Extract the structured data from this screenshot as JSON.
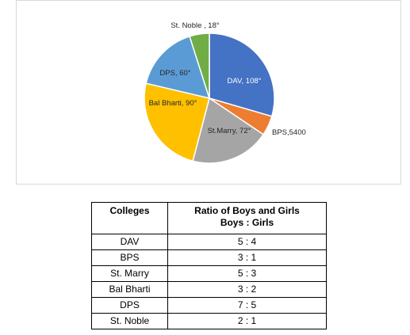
{
  "chart_data": {
    "type": "pie",
    "slices": [
      {
        "label": "DAV, 108°",
        "name": "DAV",
        "value": 108,
        "color": "#4472C4",
        "label_color": "#ffffff"
      },
      {
        "label": "BPS,5400",
        "name": "BPS",
        "value": 18,
        "color": "#ED7D31",
        "label_color": "#262626"
      },
      {
        "label": "St.Marry, 72°",
        "name": "St.Marry",
        "value": 72,
        "color": "#A5A5A5",
        "label_color": "#262626"
      },
      {
        "label": "Bal Bharti, 90°",
        "name": "Bal Bharti",
        "value": 90,
        "color": "#FFC000",
        "label_color": "#262626"
      },
      {
        "label": "DPS, 60°",
        "name": "DPS",
        "value": 60,
        "color": "#5B9BD5",
        "label_color": "#262626"
      },
      {
        "label": "St. Noble , 18°",
        "name": "St. Noble",
        "value": 18,
        "color": "#70AD47",
        "label_color": "#262626"
      }
    ]
  },
  "table": {
    "headers": {
      "college": "Colleges",
      "ratio_line1": "Ratio of Boys and Girls",
      "ratio_line2": "Boys : Girls"
    },
    "rows": [
      {
        "college": "DAV",
        "ratio": "5 : 4"
      },
      {
        "college": "BPS",
        "ratio": "3 : 1"
      },
      {
        "college": "St. Marry",
        "ratio": "5 : 3"
      },
      {
        "college": "Bal Bharti",
        "ratio": "3 : 2"
      },
      {
        "college": "DPS",
        "ratio": "7 : 5"
      },
      {
        "college": "St. Noble",
        "ratio": "2 : 1"
      }
    ]
  }
}
